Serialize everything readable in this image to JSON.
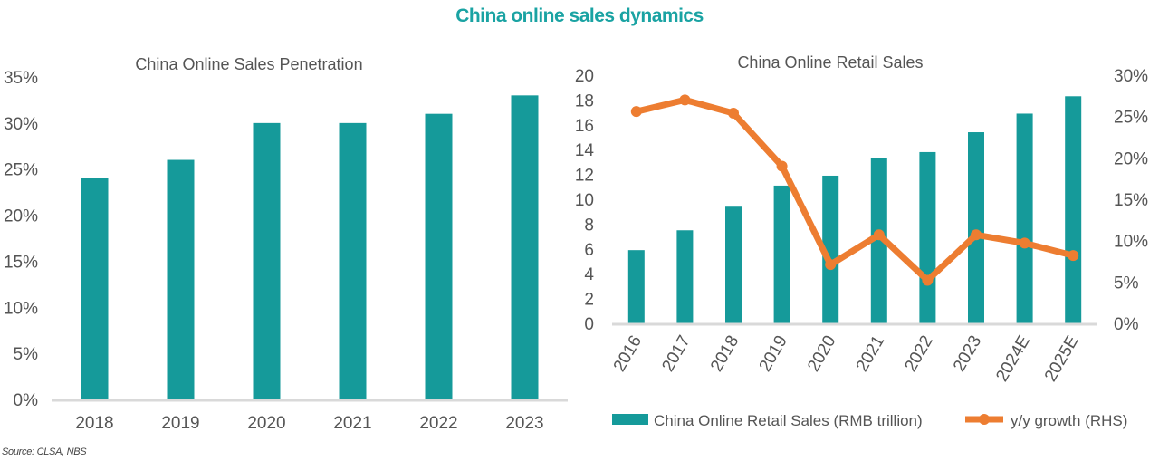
{
  "title": "China online sales dynamics",
  "source": "Source: CLSA, NBS",
  "colors": {
    "bar": "#159a9a",
    "line": "#ed7d31",
    "title": "#1aa3a3",
    "axis": "#d9d9d9"
  },
  "chart_data": [
    {
      "type": "bar",
      "title": "China Online Sales Penetration",
      "categories": [
        "2018",
        "2019",
        "2020",
        "2021",
        "2022",
        "2023"
      ],
      "values": [
        24,
        26,
        30,
        30,
        31,
        33
      ],
      "ylim": [
        0,
        35
      ],
      "yticks": [
        "0%",
        "5%",
        "10%",
        "15%",
        "20%",
        "25%",
        "30%",
        "35%"
      ],
      "ylabel": "",
      "xlabel": "",
      "grid": false
    },
    {
      "type": "bar+line",
      "title": "China Online Retail Sales",
      "categories": [
        "2016",
        "2017",
        "2018",
        "2019",
        "2020",
        "2021",
        "2022",
        "2023",
        "2024E",
        "2025E"
      ],
      "series": [
        {
          "name": "China Online Retail Sales (RMB trillion)",
          "type": "bar",
          "axis": "left",
          "values": [
            5.9,
            7.5,
            9.4,
            11.1,
            11.9,
            13.3,
            13.8,
            15.4,
            16.9,
            18.3
          ]
        },
        {
          "name": "y/y growth (RHS)",
          "type": "line",
          "axis": "right",
          "values": [
            25.6,
            27.0,
            25.4,
            19.0,
            7.1,
            10.7,
            5.2,
            10.7,
            9.7,
            8.2
          ]
        }
      ],
      "ylim": [
        0,
        20
      ],
      "yticks": [
        "0",
        "2",
        "4",
        "6",
        "8",
        "10",
        "12",
        "14",
        "16",
        "18",
        "20"
      ],
      "y2lim": [
        0,
        30
      ],
      "y2ticks": [
        "0%",
        "5%",
        "10%",
        "15%",
        "20%",
        "25%",
        "30%"
      ],
      "legend": "bottom",
      "grid": false
    }
  ]
}
